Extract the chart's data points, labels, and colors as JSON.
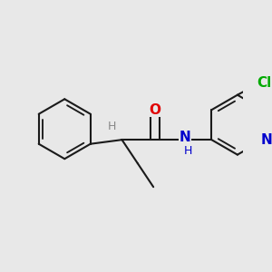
{
  "bg_color": "#e8e8e8",
  "bond_color": "#1a1a1a",
  "bond_width": 1.5,
  "atom_colors": {
    "O": "#e00000",
    "N": "#0000cc",
    "Cl": "#00aa00",
    "H_label": "#888888"
  },
  "font_size_atoms": 11,
  "font_size_H": 9,
  "font_size_Cl": 11
}
